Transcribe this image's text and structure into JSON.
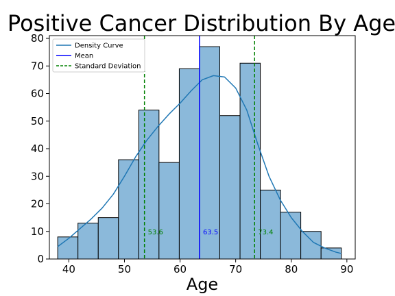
{
  "chart_data": {
    "type": "bar",
    "title": "Positive Cancer Distribution By Age",
    "xlabel": "Age",
    "ylabel": "",
    "xlim": [
      36.5,
      91.5
    ],
    "ylim": [
      0,
      81
    ],
    "xticks": [
      40,
      50,
      60,
      70,
      80,
      90
    ],
    "yticks": [
      0,
      10,
      20,
      30,
      40,
      50,
      60,
      70,
      80
    ],
    "bins": [
      {
        "start": 38.0,
        "end": 41.64,
        "count": 8
      },
      {
        "start": 41.64,
        "end": 45.29,
        "count": 13
      },
      {
        "start": 45.29,
        "end": 48.93,
        "count": 15
      },
      {
        "start": 48.93,
        "end": 52.57,
        "count": 36
      },
      {
        "start": 52.57,
        "end": 56.21,
        "count": 54
      },
      {
        "start": 56.21,
        "end": 59.86,
        "count": 35
      },
      {
        "start": 59.86,
        "end": 63.5,
        "count": 69
      },
      {
        "start": 63.5,
        "end": 67.14,
        "count": 77
      },
      {
        "start": 67.14,
        "end": 70.79,
        "count": 52
      },
      {
        "start": 70.79,
        "end": 74.43,
        "count": 71
      },
      {
        "start": 74.43,
        "end": 78.07,
        "count": 25
      },
      {
        "start": 78.07,
        "end": 81.71,
        "count": 17
      },
      {
        "start": 81.71,
        "end": 85.36,
        "count": 10
      },
      {
        "start": 85.36,
        "end": 89.0,
        "count": 4
      }
    ],
    "density_curve": {
      "x": [
        38,
        40,
        42,
        44,
        46,
        48,
        50,
        52,
        54,
        56,
        58,
        60,
        62,
        64,
        66,
        68,
        70,
        72,
        74,
        76,
        78,
        80,
        82,
        84,
        86,
        88,
        89
      ],
      "y": [
        4.5,
        7.5,
        11,
        14.5,
        18.5,
        23.5,
        30,
        37,
        43,
        48,
        52.5,
        56.5,
        61,
        65,
        66.5,
        66,
        62,
        54,
        41.5,
        30,
        21.5,
        15,
        10,
        6,
        4,
        2.5,
        2
      ]
    },
    "mean": {
      "value": 63.5,
      "label": "63.5",
      "color": "#0000ff"
    },
    "std_lines": [
      {
        "value": 53.6,
        "label": "53.6",
        "color": "#008000"
      },
      {
        "value": 73.4,
        "label": "73.4",
        "color": "#008000"
      }
    ],
    "legend": {
      "position": "upper-left",
      "items": [
        {
          "label": "Density Curve",
          "color": "#1f77b4",
          "style": "solid"
        },
        {
          "label": "Mean",
          "color": "#0000ff",
          "style": "solid"
        },
        {
          "label": "Standard Deviation",
          "color": "#008000",
          "style": "dashed"
        }
      ]
    },
    "colors": {
      "bar_fill": "#8bb9da",
      "bar_edge": "#000000",
      "curve": "#1f77b4"
    },
    "grid": false
  }
}
